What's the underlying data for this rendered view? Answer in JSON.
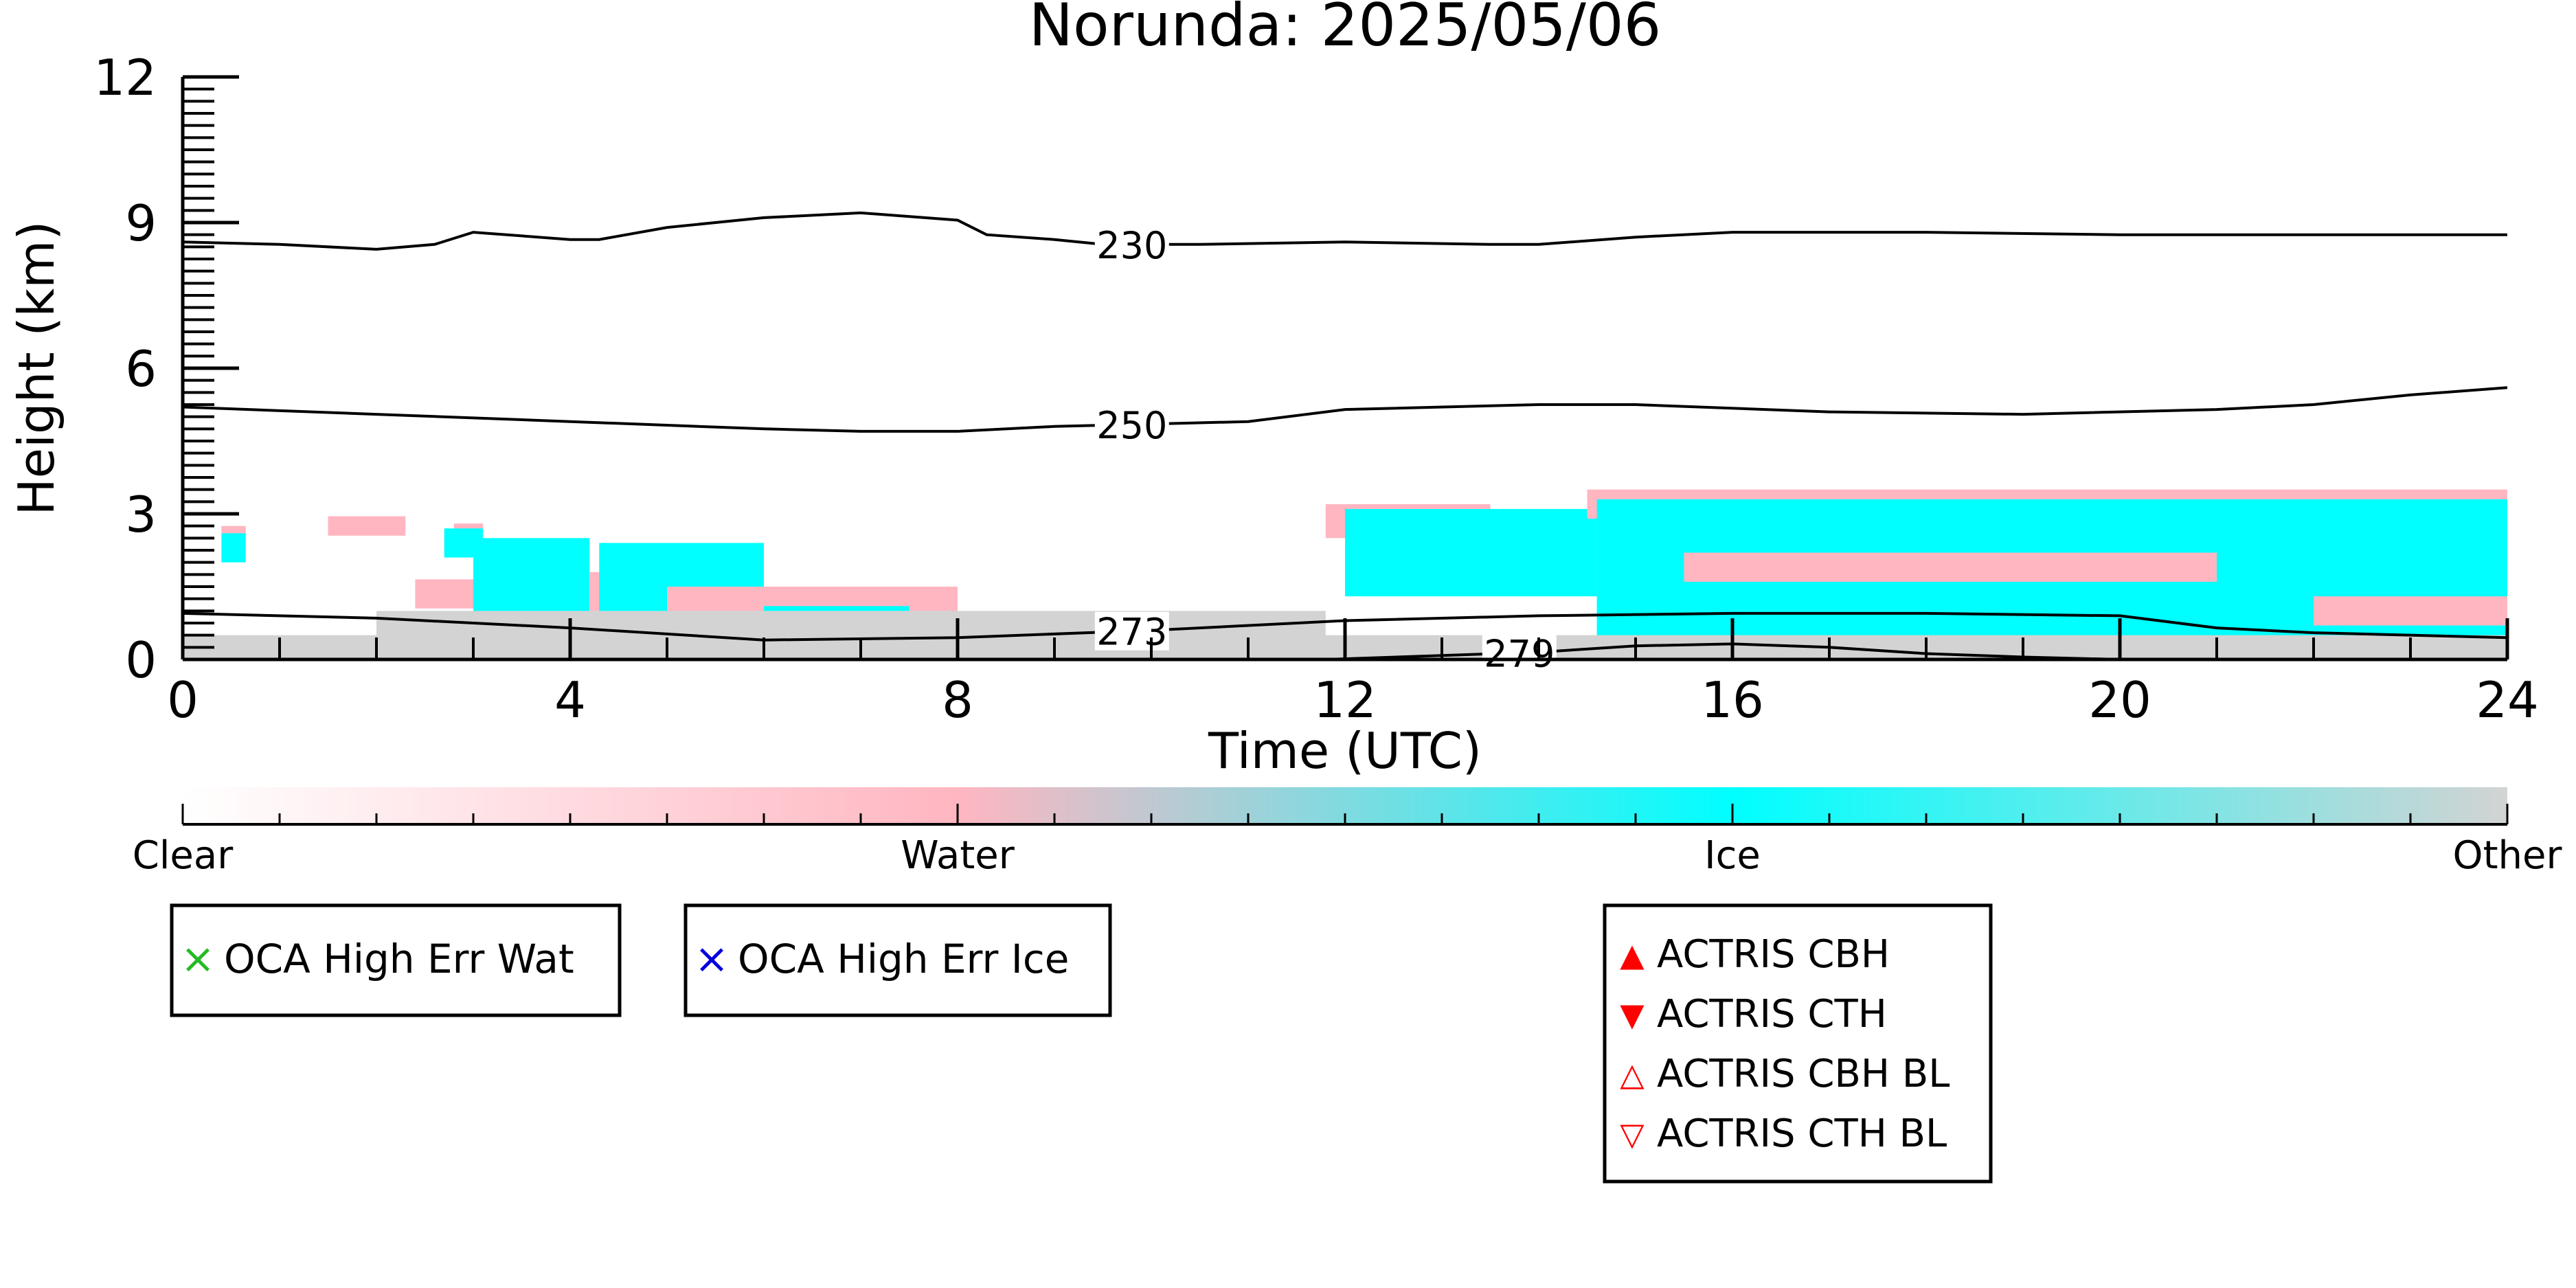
{
  "colors": {
    "clear": "#ffffff",
    "water": "#ffb6c1",
    "ice": "#00ffff",
    "other": "#d3d3d3",
    "contour": "#000000",
    "oca_water_marker": "#22bb22",
    "oca_ice_marker": "#0000dd",
    "actris_marker": "#ff0000"
  },
  "chart_data": {
    "type": "heatmap",
    "title": "Norunda: 2025/05/06",
    "xlabel": "Time (UTC)",
    "ylabel": "Height (km)",
    "xlim": [
      0,
      24
    ],
    "ylim": [
      0,
      12
    ],
    "x_ticks": [
      "0",
      "4",
      "8",
      "12",
      "16",
      "20",
      "24"
    ],
    "y_ticks": [
      "0",
      "3",
      "6",
      "9",
      "12"
    ],
    "colorbar": {
      "labels": [
        "Clear",
        "Water",
        "Ice",
        "Other"
      ],
      "positions": [
        0,
        1,
        2,
        3
      ]
    },
    "contours": [
      {
        "label": "230",
        "label_x": 9.8,
        "points": [
          [
            0,
            8.6
          ],
          [
            1,
            8.55
          ],
          [
            2,
            8.45
          ],
          [
            2.6,
            8.55
          ],
          [
            3,
            8.8
          ],
          [
            4,
            8.65
          ],
          [
            4.3,
            8.65
          ],
          [
            5,
            8.9
          ],
          [
            6,
            9.1
          ],
          [
            7,
            9.2
          ],
          [
            8,
            9.05
          ],
          [
            8.3,
            8.75
          ],
          [
            9,
            8.65
          ],
          [
            9.5,
            8.55
          ],
          [
            10.5,
            8.55
          ],
          [
            12,
            8.6
          ],
          [
            13.5,
            8.55
          ],
          [
            14,
            8.55
          ],
          [
            15,
            8.7
          ],
          [
            16,
            8.8
          ],
          [
            18,
            8.8
          ],
          [
            20,
            8.75
          ],
          [
            22,
            8.75
          ],
          [
            24,
            8.75
          ]
        ]
      },
      {
        "label": "250",
        "label_x": 9.8,
        "points": [
          [
            0,
            5.2
          ],
          [
            2,
            5.05
          ],
          [
            4,
            4.9
          ],
          [
            6,
            4.75
          ],
          [
            7,
            4.7
          ],
          [
            8,
            4.7
          ],
          [
            9,
            4.8
          ],
          [
            10,
            4.85
          ],
          [
            11,
            4.9
          ],
          [
            12,
            5.15
          ],
          [
            14,
            5.25
          ],
          [
            15,
            5.25
          ],
          [
            17,
            5.1
          ],
          [
            19,
            5.05
          ],
          [
            21,
            5.15
          ],
          [
            22,
            5.25
          ],
          [
            23,
            5.45
          ],
          [
            24,
            5.6
          ]
        ]
      },
      {
        "label": "273",
        "label_x": 9.8,
        "points": [
          [
            0,
            0.95
          ],
          [
            2,
            0.85
          ],
          [
            4,
            0.65
          ],
          [
            6,
            0.4
          ],
          [
            8,
            0.45
          ],
          [
            10,
            0.6
          ],
          [
            12,
            0.8
          ],
          [
            14,
            0.9
          ],
          [
            16,
            0.95
          ],
          [
            18,
            0.95
          ],
          [
            20,
            0.9
          ],
          [
            21,
            0.65
          ],
          [
            22,
            0.55
          ],
          [
            24,
            0.45
          ]
        ]
      },
      {
        "label": "279",
        "label_x": 13.8,
        "points": [
          [
            11.8,
            0
          ],
          [
            13,
            0.08
          ],
          [
            14,
            0.15
          ],
          [
            15,
            0.28
          ],
          [
            16,
            0.32
          ],
          [
            17,
            0.25
          ],
          [
            18,
            0.12
          ],
          [
            19,
            0.05
          ],
          [
            20,
            0
          ]
        ]
      }
    ],
    "cloud_regions": [
      {
        "class": "Water",
        "x": [
          0.4,
          0.65
        ],
        "y": [
          2.15,
          2.75
        ]
      },
      {
        "class": "Ice",
        "x": [
          0.4,
          0.65
        ],
        "y": [
          2.0,
          2.6
        ]
      },
      {
        "class": "Water",
        "x": [
          1.5,
          2.3
        ],
        "y": [
          2.55,
          2.95
        ]
      },
      {
        "class": "Water",
        "x": [
          2.8,
          3.1
        ],
        "y": [
          2.45,
          2.8
        ]
      },
      {
        "class": "Ice",
        "x": [
          2.7,
          3.1
        ],
        "y": [
          2.1,
          2.7
        ]
      },
      {
        "class": "Water",
        "x": [
          2.4,
          4.2
        ],
        "y": [
          1.05,
          1.65
        ]
      },
      {
        "class": "Ice",
        "x": [
          3.0,
          4.2
        ],
        "y": [
          0.1,
          2.5
        ]
      },
      {
        "class": "Water",
        "x": [
          4.2,
          6.0
        ],
        "y": [
          1.0,
          1.8
        ]
      },
      {
        "class": "Ice",
        "x": [
          4.3,
          6.0
        ],
        "y": [
          0.3,
          2.4
        ]
      },
      {
        "class": "Water",
        "x": [
          5.0,
          8.0
        ],
        "y": [
          0.3,
          1.5
        ]
      },
      {
        "class": "Ice",
        "x": [
          6.0,
          7.5
        ],
        "y": [
          0.5,
          1.1
        ]
      },
      {
        "class": "Water",
        "x": [
          11.8,
          13.5
        ],
        "y": [
          2.5,
          3.2
        ]
      },
      {
        "class": "Ice",
        "x": [
          12.0,
          14.6
        ],
        "y": [
          1.3,
          3.1
        ]
      },
      {
        "class": "Water",
        "x": [
          14.5,
          24.0
        ],
        "y": [
          2.9,
          3.5
        ]
      },
      {
        "class": "Ice",
        "x": [
          14.6,
          24.0
        ],
        "y": [
          0.4,
          3.3
        ]
      },
      {
        "class": "Water",
        "x": [
          15.5,
          21.0
        ],
        "y": [
          1.6,
          2.2
        ]
      },
      {
        "class": "Water",
        "x": [
          22.0,
          24.0
        ],
        "y": [
          0.7,
          1.3
        ]
      },
      {
        "class": "Other",
        "x": [
          0.0,
          24.0
        ],
        "y": [
          0.0,
          0.5
        ]
      },
      {
        "class": "Other",
        "x": [
          2.0,
          11.8
        ],
        "y": [
          0.3,
          1.0
        ]
      }
    ]
  },
  "legends": {
    "oca_water": {
      "symbol": "×",
      "label": "OCA High Err Wat"
    },
    "oca_ice": {
      "symbol": "×",
      "label": "OCA High Err Ice"
    },
    "actris": [
      {
        "symbol": "▲",
        "label": "ACTRIS CBH",
        "marker": "filled-up-triangle-icon"
      },
      {
        "symbol": "▼",
        "label": "ACTRIS CTH",
        "marker": "filled-down-triangle-icon"
      },
      {
        "symbol": "△",
        "label": "ACTRIS CBH BL",
        "marker": "open-up-triangle-icon"
      },
      {
        "symbol": "▽",
        "label": "ACTRIS CTH BL",
        "marker": "open-down-triangle-icon"
      }
    ]
  }
}
